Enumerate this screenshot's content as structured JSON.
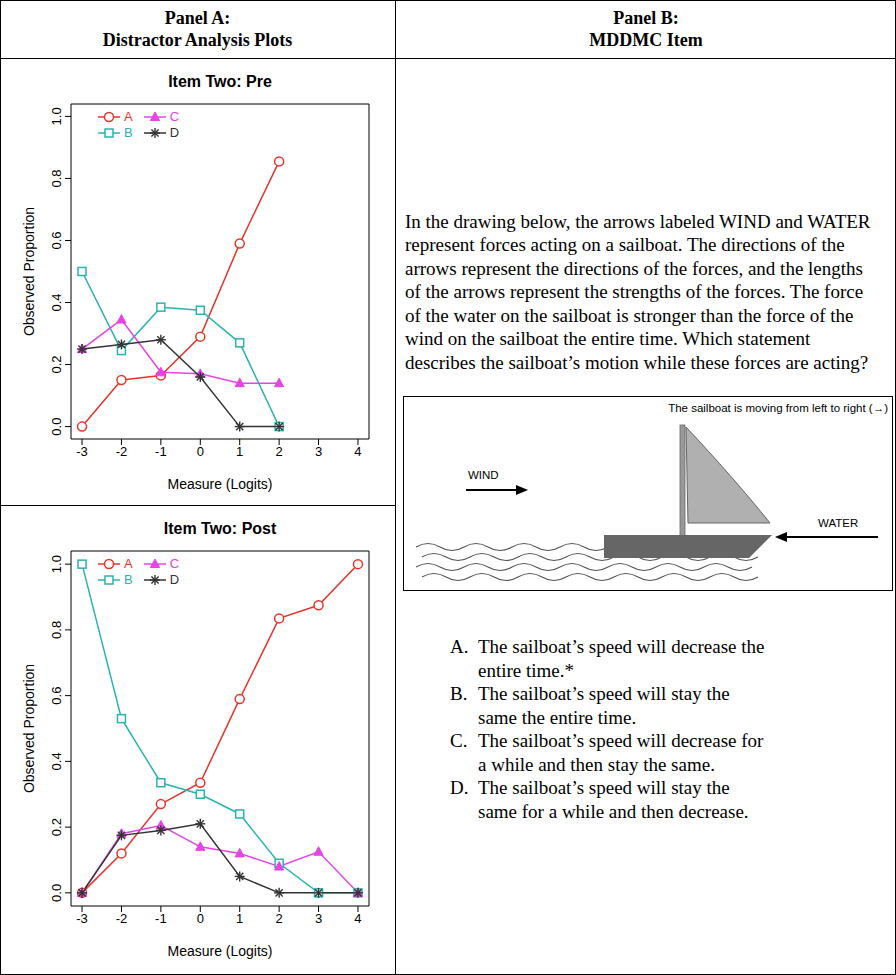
{
  "header": {
    "panel_a": {
      "label": "Panel A:",
      "title": "Distractor Analysis Plots"
    },
    "panel_b": {
      "label": "Panel B:",
      "title": "MDDMC Item"
    }
  },
  "chart_data": [
    {
      "type": "line",
      "title": "Item Two: Pre",
      "x_label": "Measure (Logits)",
      "y_label": "Observed Proportion",
      "x": [
        -3,
        -2,
        -1,
        0,
        1,
        2
      ],
      "xlim": [
        -3.28,
        4.28
      ],
      "xticks": [
        -3,
        -2,
        -1,
        0,
        1,
        2,
        3,
        4
      ],
      "ylim": [
        -0.04,
        1.04
      ],
      "yticks": [
        {
          "value": 0,
          "label": "0.0"
        },
        {
          "value": 0.2,
          "label": "0.2"
        },
        {
          "value": 0.4,
          "label": "0.4"
        },
        {
          "value": 0.6,
          "label": "0.6"
        },
        {
          "value": 0.8,
          "label": "0.8"
        },
        {
          "value": 1,
          "label": "1.0"
        }
      ],
      "legend": "top-left",
      "series": [
        {
          "name": "A",
          "color": "#e6342b",
          "marker": "circle",
          "values": [
            0,
            0.15,
            0.165,
            0.29,
            0.59,
            0.855
          ]
        },
        {
          "name": "B",
          "color": "#2ab3b0",
          "marker": "square",
          "values": [
            0.5,
            0.245,
            0.385,
            0.375,
            0.27,
            0
          ]
        },
        {
          "name": "C",
          "color": "#e545e5",
          "marker": "triangle",
          "values": [
            0.25,
            0.345,
            0.175,
            0.17,
            0.14,
            0.14
          ]
        },
        {
          "name": "D",
          "color": "#333333",
          "marker": "asterisk",
          "values": [
            0.25,
            0.265,
            0.28,
            0.16,
            0,
            0
          ]
        }
      ]
    },
    {
      "type": "line",
      "title": "Item Two: Post",
      "x_label": "Measure (Logits)",
      "y_label": "Observed Proportion",
      "x": [
        -3,
        -2,
        -1,
        0,
        1,
        2,
        3,
        4
      ],
      "xlim": [
        -3.28,
        4.28
      ],
      "xticks": [
        -3,
        -2,
        -1,
        0,
        1,
        2,
        3,
        4
      ],
      "ylim": [
        -0.04,
        1.04
      ],
      "yticks": [
        {
          "value": 0,
          "label": "0.0"
        },
        {
          "value": 0.2,
          "label": "0.2"
        },
        {
          "value": 0.4,
          "label": "0.4"
        },
        {
          "value": 0.6,
          "label": "0.6"
        },
        {
          "value": 0.8,
          "label": "0.8"
        },
        {
          "value": 1,
          "label": "1.0"
        }
      ],
      "legend": "top-left",
      "series": [
        {
          "name": "A",
          "color": "#e6342b",
          "marker": "circle",
          "values": [
            0,
            0.12,
            0.27,
            0.335,
            0.59,
            0.835,
            0.875,
            1
          ]
        },
        {
          "name": "B",
          "color": "#2ab3b0",
          "marker": "square",
          "values": [
            1,
            0.53,
            0.335,
            0.3,
            0.24,
            0.09,
            0,
            0
          ]
        },
        {
          "name": "C",
          "color": "#e545e5",
          "marker": "triangle",
          "values": [
            0,
            0.18,
            0.205,
            0.14,
            0.12,
            0.08,
            0.125,
            0
          ]
        },
        {
          "name": "D",
          "color": "#333333",
          "marker": "asterisk",
          "values": [
            0,
            0.175,
            0.19,
            0.21,
            0.05,
            0,
            0,
            0
          ]
        }
      ]
    }
  ],
  "item": {
    "question": "In the drawing below, the arrows labeled WIND and WATER represent forces acting on a sailboat. The directions of the arrows represent the directions of the forces, and the lengths of the arrows represent the strengths of the forces. The force of the water on the sailboat is stronger than the force of the wind on the sailboat the entire time. Which statement describes the sailboat’s motion while these forces are acting?",
    "figure": {
      "caption": "The sailboat is moving from left to right (→)",
      "wind_label": "WIND",
      "water_label": "WATER"
    },
    "options": [
      {
        "letter": "A.",
        "text": "The sailboat’s speed will decrease the entire time.*"
      },
      {
        "letter": "B.",
        "text": "The sailboat’s speed will stay the same the entire time."
      },
      {
        "letter": "C.",
        "text": "The sailboat’s speed will decrease for a while and then stay the same."
      },
      {
        "letter": "D.",
        "text": "The sailboat’s speed will stay the same for a while and then decrease."
      }
    ]
  }
}
